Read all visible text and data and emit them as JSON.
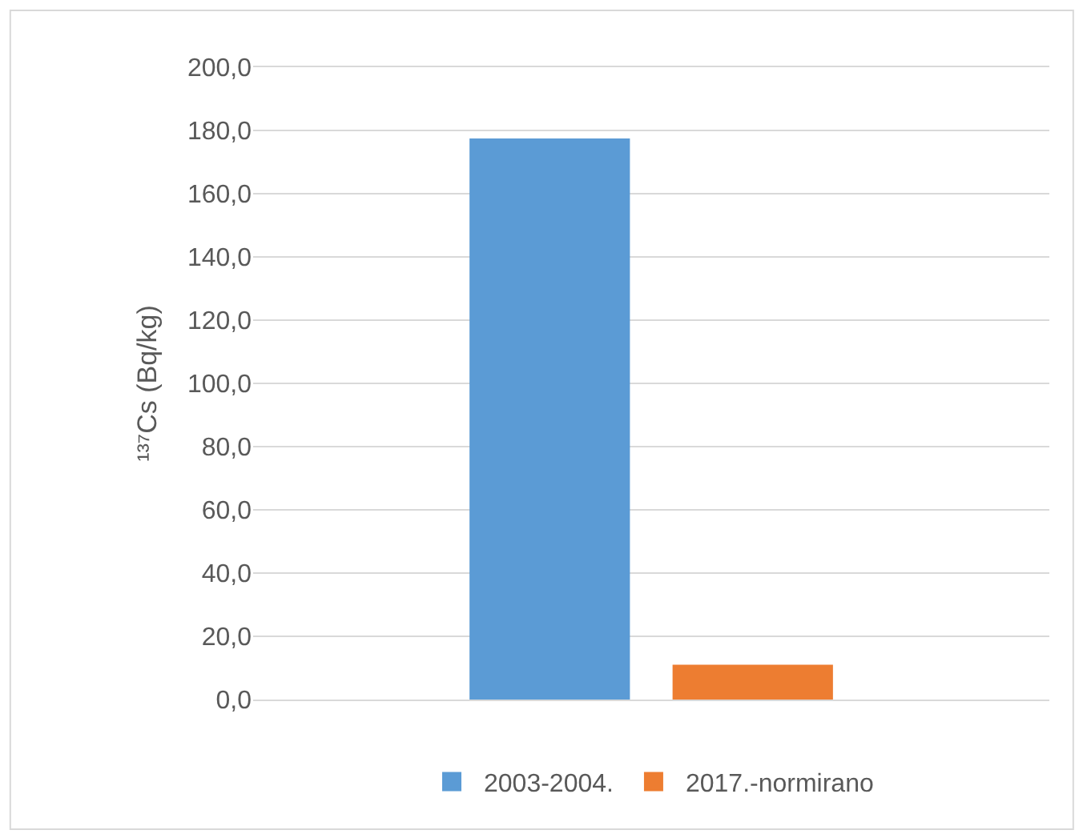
{
  "chart_data": {
    "type": "bar",
    "categories": [
      null
    ],
    "ylabel": "¹³⁷Cs (Bq/kg)",
    "series": [
      {
        "name": "2003-2004.",
        "color": "#5b9bd5",
        "values": [
          177.5
        ]
      },
      {
        "name": "2017.-normirano",
        "color": "#ed7d31",
        "values": [
          11.0
        ]
      }
    ],
    "ylim": [
      0,
      200
    ],
    "yticks": [
      {
        "value": 0,
        "label": "0,0"
      },
      {
        "value": 20,
        "label": "20,0"
      },
      {
        "value": 40,
        "label": "40,0"
      },
      {
        "value": 60,
        "label": "60,0"
      },
      {
        "value": 80,
        "label": "80,0"
      },
      {
        "value": 100,
        "label": "100,0"
      },
      {
        "value": 120,
        "label": "120,0"
      },
      {
        "value": 140,
        "label": "140,0"
      },
      {
        "value": 160,
        "label": "160,0"
      },
      {
        "value": 180,
        "label": "180,0"
      },
      {
        "value": 200,
        "label": "200,0"
      }
    ],
    "grid": "y",
    "legend": "bottom"
  }
}
